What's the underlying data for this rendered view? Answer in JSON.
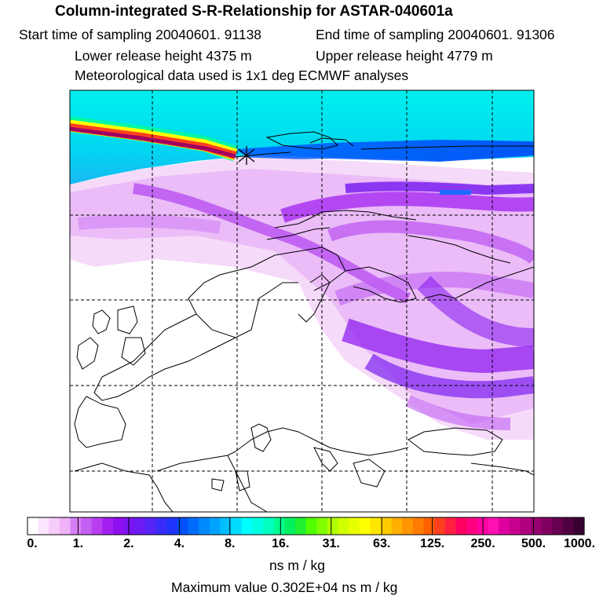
{
  "header": {
    "title": "Column-integrated S-R-Relationship for ASTAR-040601a",
    "start_time": "Start time of sampling 20040601. 91138",
    "end_time": "End time of sampling 20040601. 91306",
    "lower_release": "Lower release height 4375 m",
    "upper_release": "Upper release height 4779 m",
    "met_data": "Meteorological data used is 1x1 deg ECMWF analyses"
  },
  "map": {
    "release_marker": "x",
    "grid_style": "dashed",
    "plume_colors": [
      "#f4d8fb",
      "#e2a6f5",
      "#c25cf0",
      "#a000f0",
      "#6a1af0",
      "#1e6cff",
      "#00e5f0",
      "#ff00a0"
    ]
  },
  "colorbar": {
    "segments": [
      "#ffffff",
      "#fbe6fd",
      "#f6ccfb",
      "#f0b2f8",
      "#d67ef5",
      "#c55ef2",
      "#b83ef0",
      "#a31ff0",
      "#8e10ee",
      "#7a14f0",
      "#6a1cf3",
      "#5624f6",
      "#3a2cf8",
      "#1e34fa",
      "#0050fb",
      "#006cfc",
      "#0088fd",
      "#00a4fe",
      "#00c0ff",
      "#00dcff",
      "#00ffff",
      "#00ffe0",
      "#00ffc0",
      "#00ff90",
      "#00f060",
      "#20f030",
      "#50ff00",
      "#80ff00",
      "#b0ff00",
      "#d0ff00",
      "#e8ff00",
      "#ffff00",
      "#ffe600",
      "#ffcc00",
      "#ffb000",
      "#ff9600",
      "#ff7c00",
      "#ff6000",
      "#ff4020",
      "#ff2040",
      "#ff0060",
      "#ff0080",
      "#ff00a0",
      "#ff10b0",
      "#e000a0",
      "#c80090",
      "#b00080",
      "#980070",
      "#800060",
      "#680050",
      "#500040",
      "#380030"
    ],
    "tick_labels": [
      "0.",
      "1.",
      "2.",
      "4.",
      "8.",
      "16.",
      "31.",
      "63.",
      "125.",
      "250.",
      "500.",
      "1000."
    ],
    "units": "ns m / kg",
    "max_value": "Maximum value  0.302E+04 ns m / kg"
  }
}
